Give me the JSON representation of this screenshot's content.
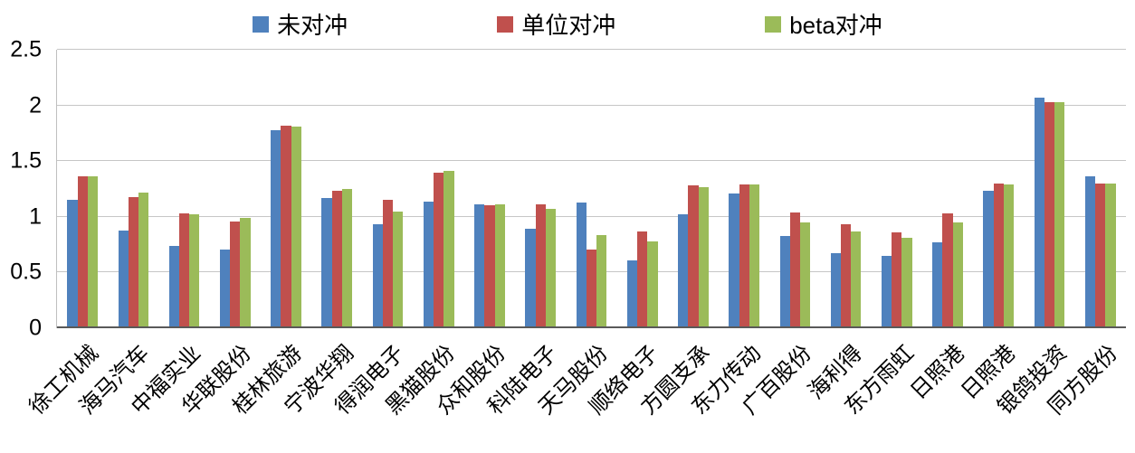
{
  "chart_data": {
    "type": "bar",
    "title": "",
    "xlabel": "",
    "ylabel": "",
    "ylim": [
      0,
      2.5
    ],
    "grid": true,
    "legend_position": "top",
    "yticks": [
      {
        "value": 0,
        "label": "0"
      },
      {
        "value": 0.5,
        "label": "0.5"
      },
      {
        "value": 1,
        "label": "1"
      },
      {
        "value": 1.5,
        "label": "1.5"
      },
      {
        "value": 2,
        "label": "2"
      },
      {
        "value": 2.5,
        "label": "2.5"
      }
    ],
    "categories": [
      "徐工机械",
      "海马汽车",
      "中福实业",
      "华联股份",
      "桂林旅游",
      "宁波华翔",
      "得润电子",
      "黑猫股份",
      "众和股份",
      "科陆电子",
      "天马股份",
      "顺络电子",
      "方圆支承",
      "东力传动",
      "广百股份",
      "海利得",
      "东方雨虹",
      "日照港",
      "日照港",
      "银鸽投资",
      "同方股份"
    ],
    "series": [
      {
        "name": "未对冲",
        "color": "#4F81BD",
        "values": [
          1.15,
          0.88,
          0.74,
          0.71,
          1.78,
          1.17,
          0.93,
          1.14,
          1.11,
          0.89,
          1.13,
          0.61,
          1.02,
          1.21,
          0.83,
          0.67,
          0.65,
          0.77,
          1.23,
          2.07,
          1.36
        ]
      },
      {
        "name": "单位对冲",
        "color": "#C0504D",
        "values": [
          1.36,
          1.18,
          1.03,
          0.96,
          1.82,
          1.23,
          1.15,
          1.4,
          1.1,
          1.11,
          0.71,
          0.87,
          1.28,
          1.29,
          1.04,
          0.93,
          0.86,
          1.03,
          1.3,
          2.03,
          1.3
        ]
      },
      {
        "name": "beta对冲",
        "color": "#9BBB59",
        "values": [
          1.36,
          1.22,
          1.02,
          0.99,
          1.81,
          1.25,
          1.05,
          1.41,
          1.11,
          1.07,
          0.84,
          0.78,
          1.27,
          1.29,
          0.95,
          0.87,
          0.81,
          0.95,
          1.29,
          2.03,
          1.3
        ]
      }
    ]
  }
}
